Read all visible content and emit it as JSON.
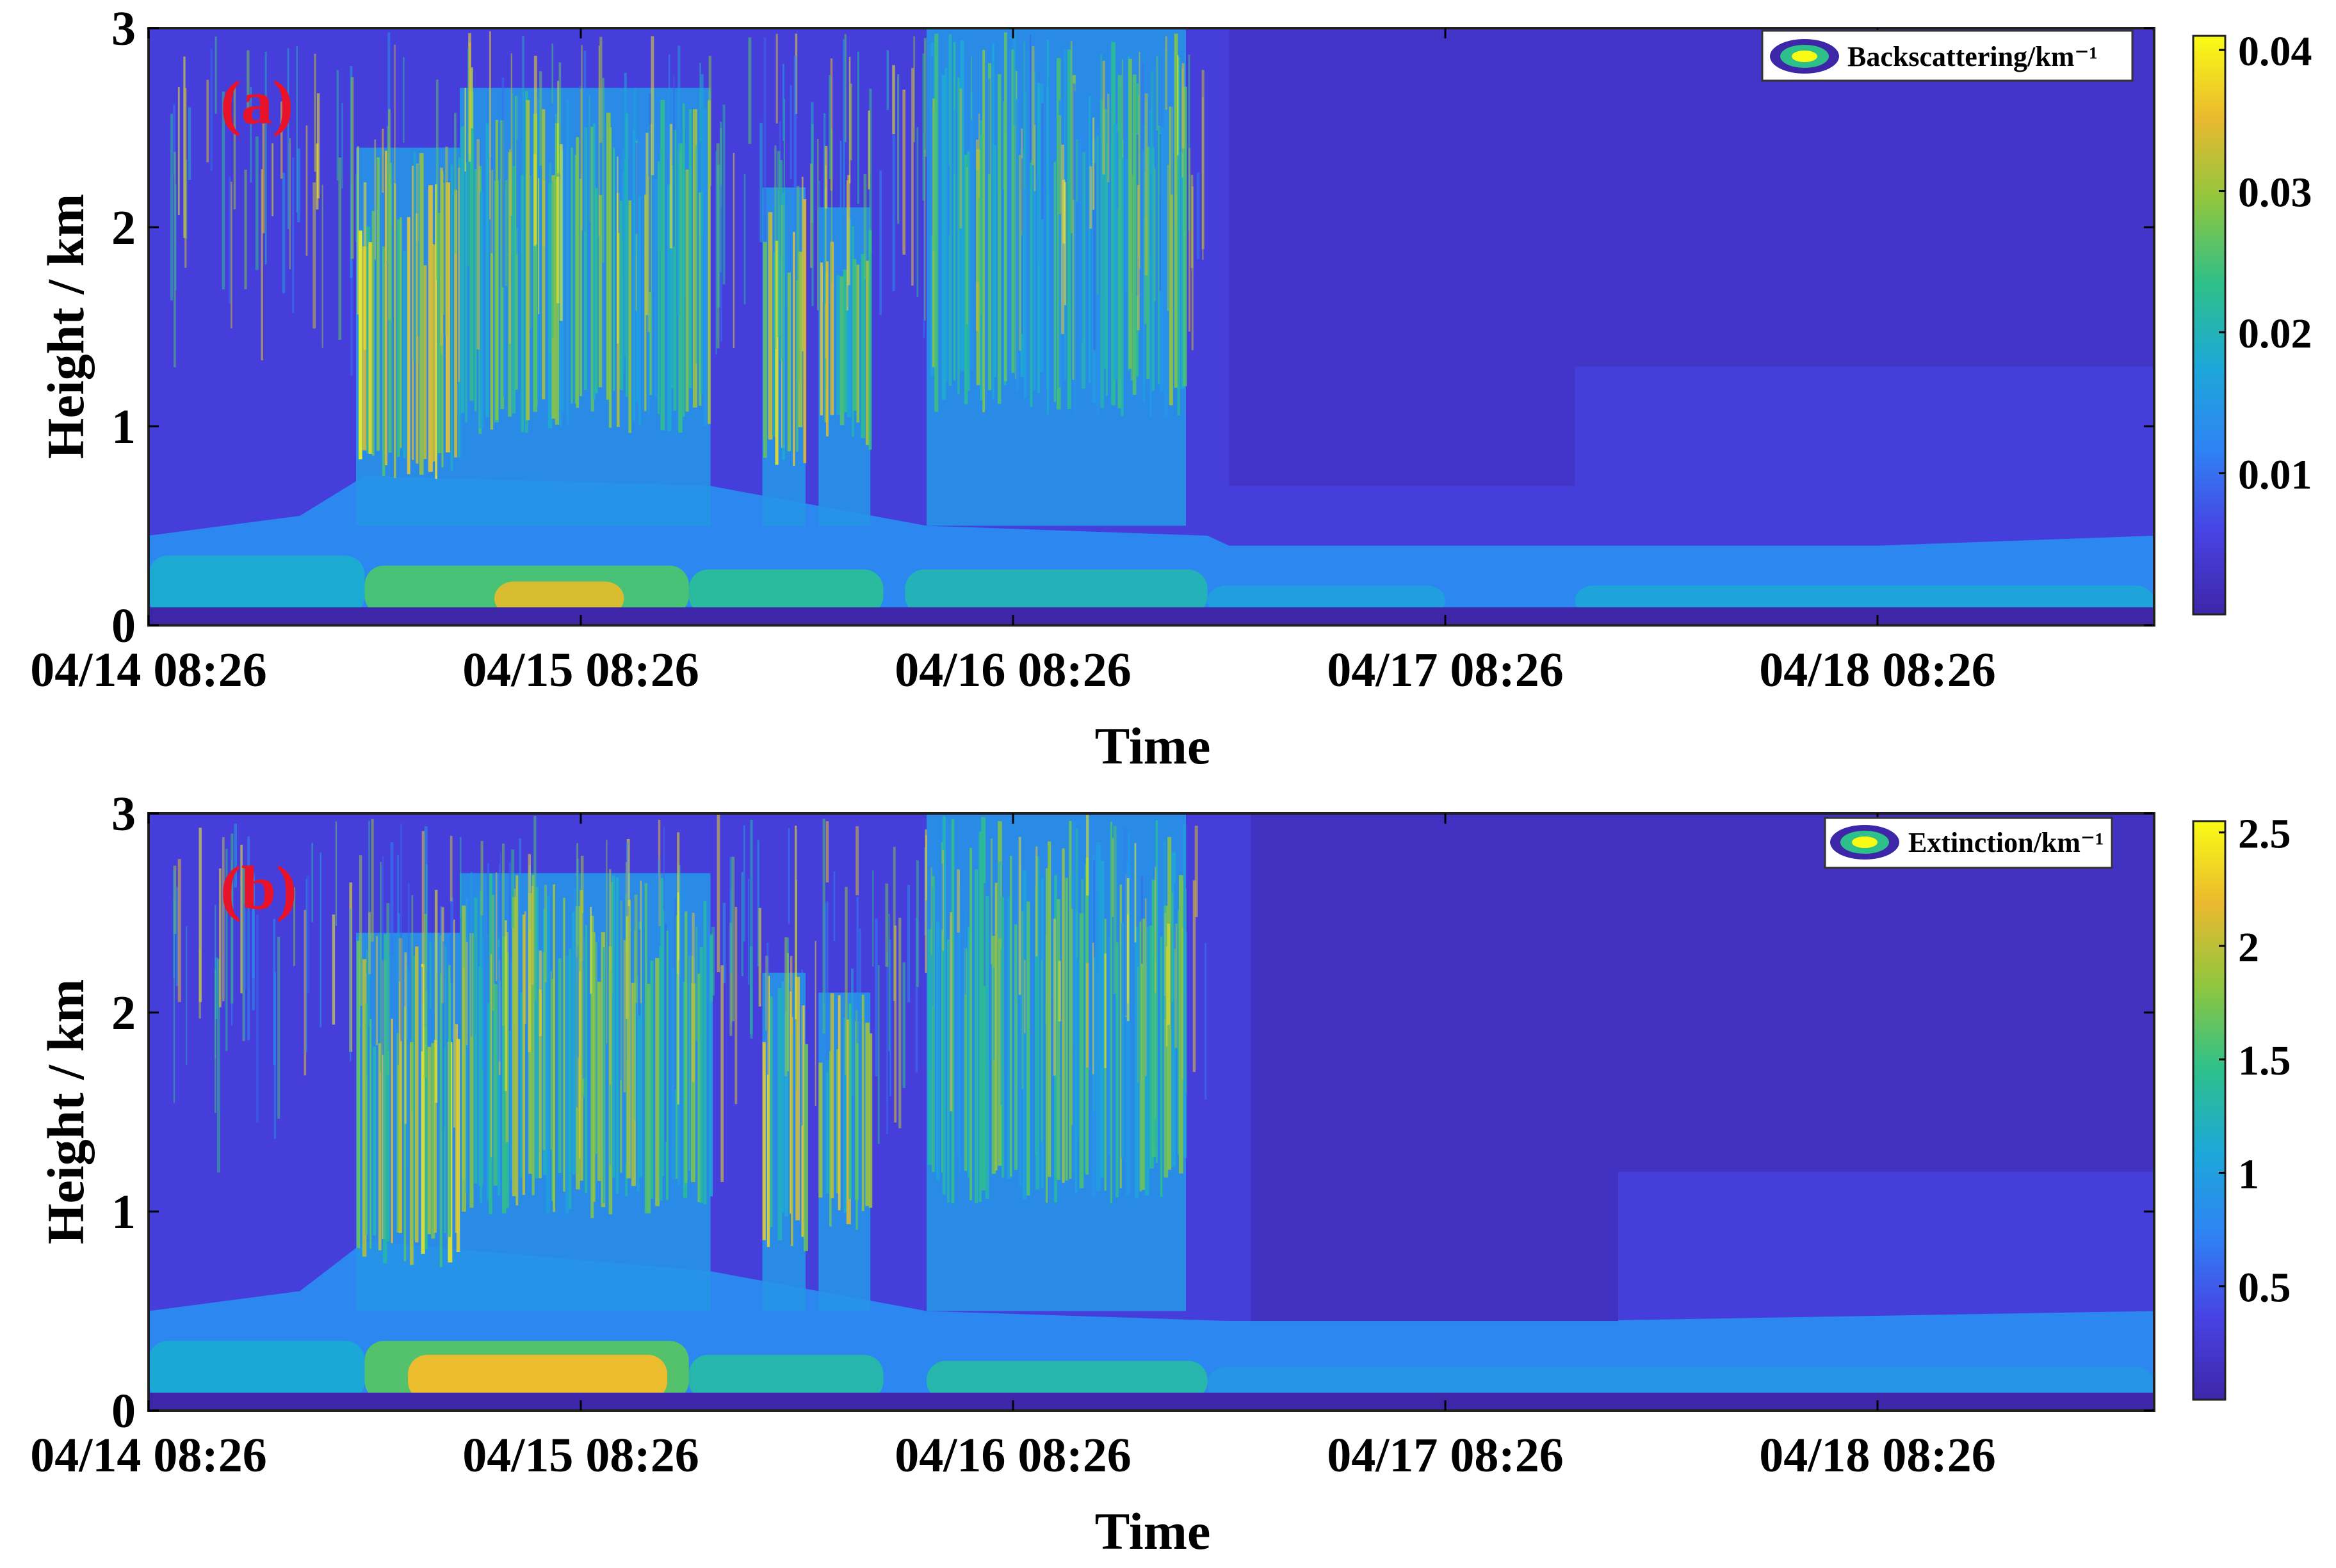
{
  "colors": {
    "colormap": [
      "#3e26a8",
      "#4743e4",
      "#2f83f4",
      "#1ca8d8",
      "#2ec08a",
      "#8fc63e",
      "#eab92f",
      "#f9fb15"
    ],
    "panel_label": "#e8132b",
    "axis": "#000000"
  },
  "chart_data": [
    {
      "type": "heatmap",
      "panel_label": "(a)",
      "xlabel": "Time",
      "ylabel": "Height / km",
      "x_ticks": [
        "04/14 08:26",
        "04/15 08:26",
        "04/16 08:26",
        "04/17 08:26",
        "04/18 08:26"
      ],
      "x_range_days": [
        0,
        4.64
      ],
      "y_ticks": [
        "0",
        "1",
        "2",
        "3"
      ],
      "ylim": [
        0,
        3
      ],
      "legend": "Backscattering/km⁻¹",
      "legend_position": "top-right",
      "colorbar": {
        "ticks": [
          "0.01",
          "0.02",
          "0.03",
          "0.04"
        ],
        "tick_values": [
          0.01,
          0.02,
          0.03,
          0.04
        ],
        "range": [
          0.0,
          0.041
        ]
      },
      "surface_layer": [
        {
          "start_day": 0.0,
          "end_day": 0.5,
          "top_km": 0.35,
          "value": 0.018
        },
        {
          "start_day": 0.5,
          "end_day": 1.25,
          "top_km": 0.3,
          "value": 0.025
        },
        {
          "start_day": 0.8,
          "end_day": 1.1,
          "top_km": 0.22,
          "value": 0.034
        },
        {
          "start_day": 1.25,
          "end_day": 1.7,
          "top_km": 0.28,
          "value": 0.022
        },
        {
          "start_day": 1.75,
          "end_day": 2.45,
          "top_km": 0.28,
          "value": 0.02
        },
        {
          "start_day": 2.45,
          "end_day": 3.0,
          "top_km": 0.2,
          "value": 0.016
        },
        {
          "start_day": 3.3,
          "end_day": 4.64,
          "top_km": 0.2,
          "value": 0.017
        }
      ],
      "boundary_layer_top_km": [
        {
          "day": 0.0,
          "top": 0.45
        },
        {
          "day": 0.35,
          "top": 0.55
        },
        {
          "day": 0.5,
          "top": 0.75
        },
        {
          "day": 1.3,
          "top": 0.7
        },
        {
          "day": 1.8,
          "top": 0.5
        },
        {
          "day": 2.45,
          "top": 0.45
        },
        {
          "day": 2.5,
          "top": 0.4
        },
        {
          "day": 4.0,
          "top": 0.4
        },
        {
          "day": 4.64,
          "top": 0.45
        }
      ],
      "aerosol_plumes": [
        {
          "start_day": 0.48,
          "end_day": 0.72,
          "base_km": 0.9,
          "top_km": 2.4,
          "peak_value": 0.041
        },
        {
          "start_day": 0.72,
          "end_day": 1.3,
          "base_km": 1.2,
          "top_km": 2.7,
          "peak_value": 0.032
        },
        {
          "start_day": 1.42,
          "end_day": 1.52,
          "base_km": 1.0,
          "top_km": 2.2,
          "peak_value": 0.04
        },
        {
          "start_day": 1.55,
          "end_day": 1.67,
          "base_km": 1.1,
          "top_km": 2.1,
          "peak_value": 0.038
        },
        {
          "start_day": 1.8,
          "end_day": 2.4,
          "base_km": 1.3,
          "top_km": 3.0,
          "peak_value": 0.03
        }
      ],
      "clear_regions": [
        {
          "start_day": 2.5,
          "end_day": 3.3,
          "base_km": 0.7,
          "value": 0.003
        },
        {
          "start_day": 3.3,
          "end_day": 4.64,
          "base_km": 1.3,
          "value": 0.003
        }
      ]
    },
    {
      "type": "heatmap",
      "panel_label": "(b)",
      "xlabel": "Time",
      "ylabel": "Height / km",
      "x_ticks": [
        "04/14 08:26",
        "04/15 08:26",
        "04/16 08:26",
        "04/17 08:26",
        "04/18 08:26"
      ],
      "x_range_days": [
        0,
        4.64
      ],
      "y_ticks": [
        "0",
        "1",
        "2",
        "3"
      ],
      "ylim": [
        0,
        3
      ],
      "legend": "Extinction/km⁻¹",
      "legend_position": "top-right",
      "colorbar": {
        "ticks": [
          "0.5",
          "1",
          "1.5",
          "2",
          "2.5"
        ],
        "tick_values": [
          0.5,
          1.0,
          1.5,
          2.0,
          2.5
        ],
        "range": [
          0.0,
          2.55
        ]
      },
      "surface_layer": [
        {
          "start_day": 0.0,
          "end_day": 0.5,
          "top_km": 0.35,
          "value": 1.1
        },
        {
          "start_day": 0.5,
          "end_day": 1.25,
          "top_km": 0.35,
          "value": 1.6
        },
        {
          "start_day": 0.6,
          "end_day": 1.2,
          "top_km": 0.28,
          "value": 2.2
        },
        {
          "start_day": 1.25,
          "end_day": 1.7,
          "top_km": 0.28,
          "value": 1.3
        },
        {
          "start_day": 1.8,
          "end_day": 2.45,
          "top_km": 0.25,
          "value": 1.3
        },
        {
          "start_day": 2.45,
          "end_day": 4.64,
          "top_km": 0.22,
          "value": 0.9
        }
      ],
      "boundary_layer_top_km": [
        {
          "day": 0.0,
          "top": 0.5
        },
        {
          "day": 0.35,
          "top": 0.6
        },
        {
          "day": 0.5,
          "top": 0.85
        },
        {
          "day": 1.3,
          "top": 0.7
        },
        {
          "day": 1.8,
          "top": 0.5
        },
        {
          "day": 2.5,
          "top": 0.45
        },
        {
          "day": 3.3,
          "top": 0.45
        },
        {
          "day": 4.64,
          "top": 0.5
        }
      ],
      "aerosol_plumes": [
        {
          "start_day": 0.48,
          "end_day": 0.72,
          "base_km": 0.9,
          "top_km": 2.4,
          "peak_value": 2.5
        },
        {
          "start_day": 0.72,
          "end_day": 1.3,
          "base_km": 1.2,
          "top_km": 2.7,
          "peak_value": 2.0
        },
        {
          "start_day": 1.42,
          "end_day": 1.52,
          "base_km": 1.0,
          "top_km": 2.2,
          "peak_value": 2.45
        },
        {
          "start_day": 1.55,
          "end_day": 1.67,
          "base_km": 1.1,
          "top_km": 2.1,
          "peak_value": 2.3
        },
        {
          "start_day": 1.8,
          "end_day": 2.4,
          "base_km": 1.3,
          "top_km": 3.0,
          "peak_value": 1.9
        }
      ],
      "clear_regions": [
        {
          "start_day": 2.55,
          "end_day": 3.4,
          "base_km": 0.45,
          "value": 0.15
        },
        {
          "start_day": 3.4,
          "end_day": 4.64,
          "base_km": 1.2,
          "value": 0.15
        }
      ]
    }
  ]
}
